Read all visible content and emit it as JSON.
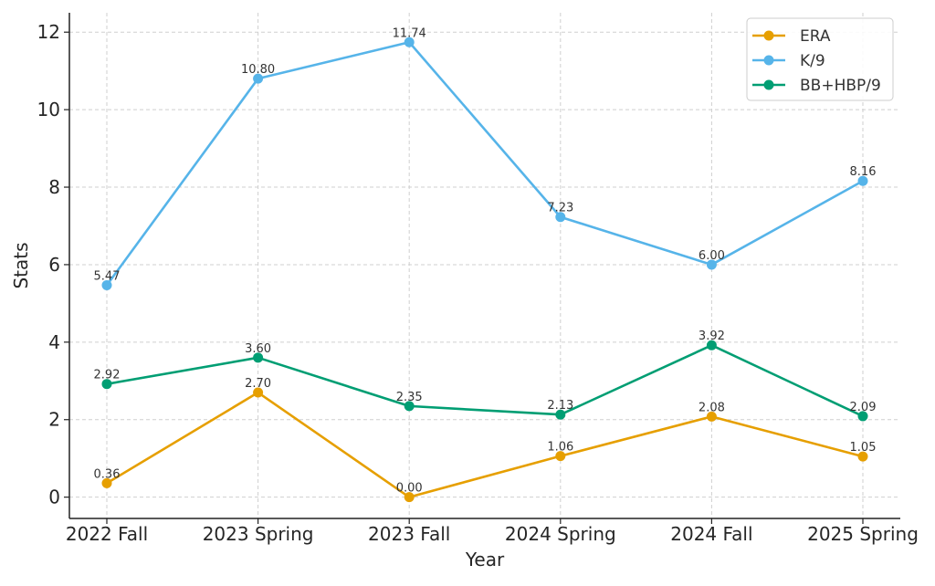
{
  "chart_data": {
    "type": "line",
    "categories": [
      "2022 Fall",
      "2023 Spring",
      "2023 Fall",
      "2024 Spring",
      "2024 Fall",
      "2025 Spring"
    ],
    "xlabel": "Year",
    "ylabel": "Stats",
    "ylim": [
      -0.55,
      12.5
    ],
    "yticks": [
      0,
      2,
      4,
      6,
      8,
      10,
      12
    ],
    "grid": true,
    "legend_position": "top-right",
    "series": [
      {
        "name": "ERA",
        "color": "#E69F00",
        "values": [
          0.36,
          2.7,
          0.0,
          1.06,
          2.08,
          1.05
        ],
        "labels": [
          "0.36",
          "2.70",
          "0.00",
          "1.06",
          "2.08",
          "1.05"
        ]
      },
      {
        "name": "K/9",
        "color": "#56B4E9",
        "values": [
          5.47,
          10.8,
          11.74,
          7.23,
          6.0,
          8.16
        ],
        "labels": [
          "5.47",
          "10.80",
          "11.74",
          "7.23",
          "6.00",
          "8.16"
        ]
      },
      {
        "name": "BB+HBP/9",
        "color": "#009E73",
        "values": [
          2.92,
          3.6,
          2.35,
          2.13,
          3.92,
          2.09
        ],
        "labels": [
          "2.92",
          "3.60",
          "2.35",
          "2.13",
          "3.92",
          "2.09"
        ]
      }
    ]
  }
}
